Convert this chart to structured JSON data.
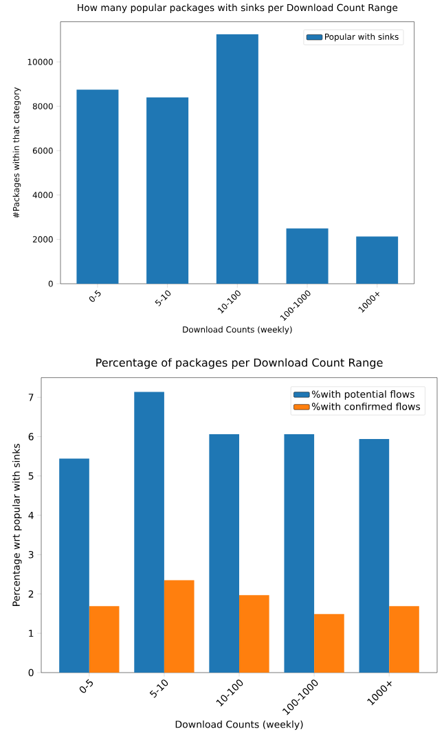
{
  "chart_data": [
    {
      "type": "bar",
      "title": "How many popular packages with sinks per Download Count Range",
      "xlabel": "Download Counts (weekly)",
      "ylabel": "#Packages within that category",
      "categories": [
        "0-5",
        "5-10",
        "10-100",
        "100-1000",
        "1000+"
      ],
      "series": [
        {
          "name": "Popular with sinks",
          "color": "#1f77b4",
          "values": [
            8750,
            8400,
            11250,
            2490,
            2130
          ]
        }
      ],
      "ylim": [
        0,
        11810
      ],
      "yticks": [
        0,
        2000,
        4000,
        6000,
        8000,
        10000
      ],
      "legend": "top right"
    },
    {
      "type": "bar",
      "title": "Percentage of packages per Download Count Range",
      "xlabel": "Download Counts (weekly)",
      "ylabel": "Percentage wrt popular with sinks",
      "categories": [
        "0-5",
        "5-10",
        "10-100",
        "100-1000",
        "1000+"
      ],
      "series": [
        {
          "name": "%with potential flows",
          "color": "#1f77b4",
          "values": [
            5.44,
            7.14,
            6.06,
            6.06,
            5.94
          ]
        },
        {
          "name": "%with confirmed flows",
          "color": "#ff7f0e",
          "values": [
            1.69,
            2.35,
            1.97,
            1.49,
            1.69
          ]
        }
      ],
      "ylim": [
        0,
        7.5
      ],
      "yticks": [
        0,
        1,
        2,
        3,
        4,
        5,
        6,
        7
      ],
      "legend": "top right"
    }
  ]
}
